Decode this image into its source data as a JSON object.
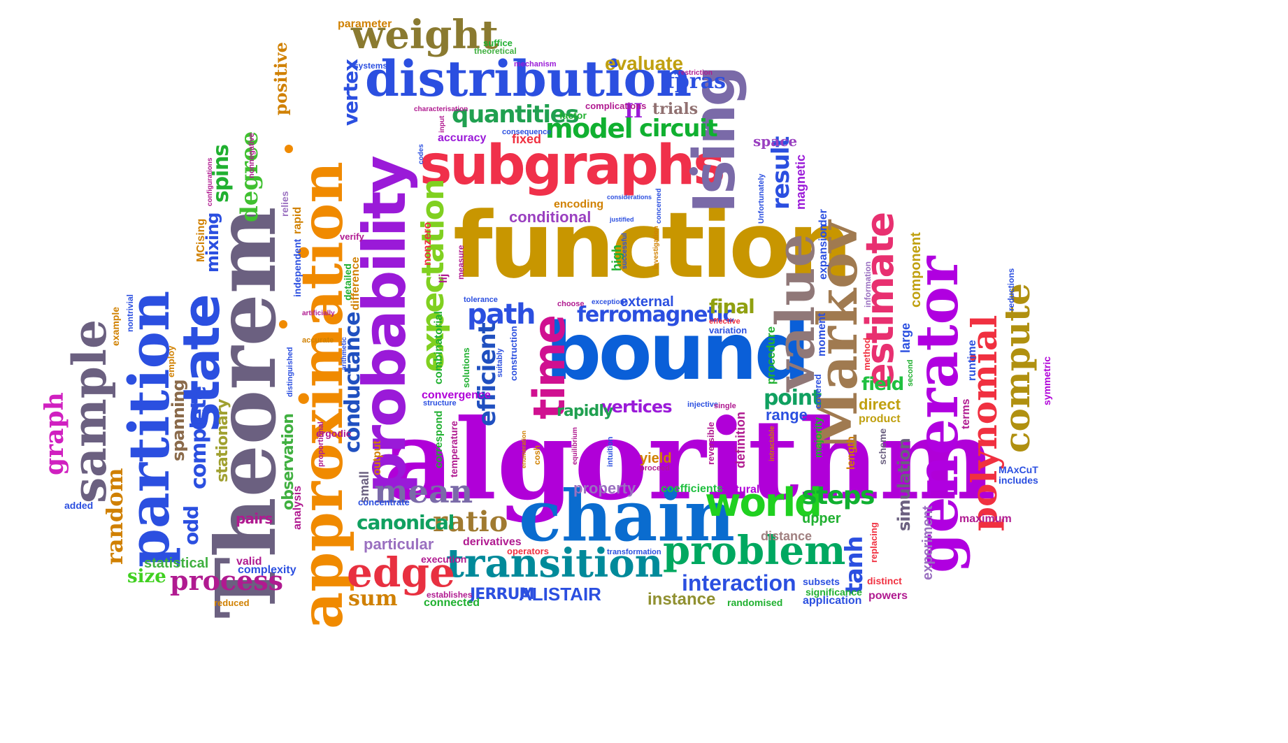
{
  "words": [
    {
      "text": "algorithm",
      "color": "#b000d8",
      "style": "serif"
    },
    {
      "text": "function",
      "color": "#c89600",
      "style": "cond"
    },
    {
      "text": "bound",
      "color": "#0a5fd8",
      "style": "cond"
    },
    {
      "text": "chain",
      "color": "#0a6ccf",
      "style": "serif"
    },
    {
      "text": "subgraphs",
      "color": "#f0304a",
      "style": "cond"
    },
    {
      "text": "distribution",
      "color": "#2b4fe0",
      "style": "serif"
    },
    {
      "text": "Theorem",
      "color": "#6b6080",
      "style": "serif"
    },
    {
      "text": "approximation",
      "color": "#f08a00",
      "style": "serif"
    },
    {
      "text": "probability",
      "color": "#9a1ad8",
      "style": "cond"
    },
    {
      "text": "Ising",
      "color": "#7a6aa8",
      "style": "cond"
    },
    {
      "text": "Markov",
      "color": "#a07a50",
      "style": "serif"
    },
    {
      "text": "value",
      "color": "#907878",
      "style": "serif"
    },
    {
      "text": "generator",
      "color": "#b000e0",
      "style": "serif"
    },
    {
      "text": "polynomial",
      "color": "#f03040",
      "style": "serif"
    },
    {
      "text": "estimate",
      "color": "#e83070",
      "style": "cond"
    },
    {
      "text": "compute",
      "color": "#b09010",
      "style": "serif"
    },
    {
      "text": "weight",
      "color": "#8a7a30",
      "style": "serif"
    },
    {
      "text": "time",
      "color": "#d01090",
      "style": "cond"
    },
    {
      "text": "transition",
      "color": "#008a9a",
      "style": "serif"
    },
    {
      "text": "problem",
      "color": "#00a860",
      "style": "serif"
    },
    {
      "text": "edge",
      "color": "#e83040",
      "style": "serif"
    },
    {
      "text": "mean",
      "color": "#7a6aa8",
      "style": "serif"
    },
    {
      "text": "world",
      "color": "#20d020",
      "style": "cond"
    },
    {
      "text": "partition",
      "color": "#2b4fe0",
      "style": "serif"
    },
    {
      "text": "state",
      "color": "#2b4fe0",
      "style": "cond"
    },
    {
      "text": "sample",
      "color": "#6b6080",
      "style": "serif"
    },
    {
      "text": "process",
      "color": "#b01a90",
      "style": "serif"
    },
    {
      "text": "degree",
      "color": "#40c030",
      "style": "serif"
    },
    {
      "text": "expectation",
      "color": "#80d020",
      "style": "cond"
    },
    {
      "text": "conductance",
      "color": "#2050c0",
      "style": "cond"
    },
    {
      "text": "model",
      "color": "#10b030",
      "style": "cond"
    },
    {
      "text": "quantities",
      "color": "#20a050",
      "style": "cond"
    },
    {
      "text": "circuit",
      "color": "#10b030",
      "style": "cond"
    },
    {
      "text": "ratio",
      "color": "#a07a30",
      "style": "serif"
    },
    {
      "text": "steps",
      "color": "#10b030",
      "style": "cond"
    },
    {
      "text": "interaction",
      "color": "#2b4fe0",
      "style": "sans"
    },
    {
      "text": "canonical",
      "color": "#10a060",
      "style": "cond"
    },
    {
      "text": "ferromagnetic",
      "color": "#2b4fe0",
      "style": "cond"
    },
    {
      "text": "path",
      "color": "#2b4fe0",
      "style": "cond"
    },
    {
      "text": "efficient",
      "color": "#2050c0",
      "style": "cond"
    },
    {
      "text": "random",
      "color": "#d08000",
      "style": "serif"
    },
    {
      "text": "graph",
      "color": "#d020c0",
      "style": "serif"
    },
    {
      "text": "result",
      "color": "#2b4fe0",
      "style": "cond"
    },
    {
      "text": "evaluate",
      "color": "#c0a010",
      "style": "sans"
    },
    {
      "text": "fpras",
      "color": "#2b4fe0",
      "style": "serif"
    },
    {
      "text": "conditional",
      "color": "#9a40c0",
      "style": "sans"
    },
    {
      "text": "tanh",
      "color": "#2b4fe0",
      "style": "cond"
    },
    {
      "text": "sum",
      "color": "#d08000",
      "style": "serif"
    },
    {
      "text": "positive",
      "color": "#d08000",
      "style": "serif"
    },
    {
      "text": "mixing",
      "color": "#2b4fe0",
      "style": "cond"
    },
    {
      "text": "spins",
      "color": "#20b030",
      "style": "cond"
    },
    {
      "text": "point",
      "color": "#10a060",
      "style": "cond"
    },
    {
      "text": "field",
      "color": "#20c040",
      "style": "cond"
    },
    {
      "text": "final",
      "color": "#90a010",
      "style": "cond"
    },
    {
      "text": "vertices",
      "color": "#9a1ad8",
      "style": "cond"
    },
    {
      "text": "vertex",
      "color": "#2b4fe0",
      "style": "cond"
    },
    {
      "text": "direct",
      "color": "#c0a010",
      "style": "sans"
    },
    {
      "text": "particular",
      "color": "#9a70c0",
      "style": "sans"
    },
    {
      "text": "ALISTAIR",
      "color": "#2b4fe0",
      "style": "sans"
    },
    {
      "text": "JERRUM",
      "color": "#2b4fe0",
      "style": "cond"
    },
    {
      "text": "instance",
      "color": "#909030",
      "style": "sans"
    },
    {
      "text": "complete",
      "color": "#2b4fe0",
      "style": "cond"
    },
    {
      "text": "spanning",
      "color": "#8a6a4a",
      "style": "cond"
    },
    {
      "text": "odd",
      "color": "#2b4fe0",
      "style": "cond"
    },
    {
      "text": "stationary",
      "color": "#a0a030",
      "style": "cond"
    },
    {
      "text": "observation",
      "color": "#40b040",
      "style": "cond"
    },
    {
      "text": "statistical",
      "color": "#40b040",
      "style": "sans"
    },
    {
      "text": "size",
      "color": "#40d020",
      "style": "serif"
    },
    {
      "text": "pairs",
      "color": "#b01a90",
      "style": "cond"
    },
    {
      "text": "rapidly",
      "color": "#20a050",
      "style": "cond"
    },
    {
      "text": "external",
      "color": "#2b4fe0",
      "style": "sans"
    },
    {
      "text": "space",
      "color": "#9a40c0",
      "style": "serif"
    },
    {
      "text": "trials",
      "color": "#907070",
      "style": "serif"
    },
    {
      "text": "II",
      "color": "#9a1ad8",
      "style": "serif"
    },
    {
      "text": "fixed",
      "color": "#f03040",
      "style": "sans"
    },
    {
      "text": "accuracy",
      "color": "#9a1ad8",
      "style": "sans"
    },
    {
      "text": "upper",
      "color": "#20b030",
      "style": "sans"
    },
    {
      "text": "distance",
      "color": "#a08080",
      "style": "sans"
    },
    {
      "text": "range",
      "color": "#2b4fe0",
      "style": "sans"
    },
    {
      "text": "property",
      "color": "#9a70c0",
      "style": "sans"
    },
    {
      "text": "coefficients",
      "color": "#20c040",
      "style": "sans"
    },
    {
      "text": "natural",
      "color": "#b000d8",
      "style": "sans"
    },
    {
      "text": "simulation",
      "color": "#6b6080",
      "style": "cond"
    },
    {
      "text": "experiment",
      "color": "#9a70c0",
      "style": "sans"
    },
    {
      "text": "component",
      "color": "#c0a010",
      "style": "sans"
    },
    {
      "text": "maximum",
      "color": "#b01a90",
      "style": "sans"
    },
    {
      "text": "MAxCuT",
      "color": "#2b4fe0",
      "style": "sans"
    },
    {
      "text": "includes",
      "color": "#2b4fe0",
      "style": "sans"
    },
    {
      "text": "terms",
      "color": "#b01a90",
      "style": "sans"
    },
    {
      "text": "runtime",
      "color": "#2b4fe0",
      "style": "sans"
    },
    {
      "text": "symmetric",
      "color": "#b000d8",
      "style": "sans"
    },
    {
      "text": "reductions",
      "color": "#2b4fe0",
      "style": "sans"
    },
    {
      "text": "encoding",
      "color": "#d08000",
      "style": "sans"
    },
    {
      "text": "factor",
      "color": "#20b030",
      "style": "sans"
    },
    {
      "text": "parameter",
      "color": "#d08000",
      "style": "sans"
    },
    {
      "text": "suffice",
      "color": "#20b030",
      "style": "sans"
    },
    {
      "text": "theoretical",
      "color": "#40b040",
      "style": "sans"
    },
    {
      "text": "systems",
      "color": "#2b4fe0",
      "style": "sans"
    },
    {
      "text": "mechanism",
      "color": "#9a1ad8",
      "style": "sans"
    },
    {
      "text": "complications",
      "color": "#b01a90",
      "style": "sans"
    },
    {
      "text": "consequence",
      "color": "#2b4fe0",
      "style": "sans"
    },
    {
      "text": "restriction",
      "color": "#b01a90",
      "style": "sans"
    },
    {
      "text": "characterisation",
      "color": "#b01a90",
      "style": "sans"
    },
    {
      "text": "input",
      "color": "#b01a90",
      "style": "sans"
    },
    {
      "text": "codes",
      "color": "#2b4fe0",
      "style": "sans"
    },
    {
      "text": "considerations",
      "color": "#2b4fe0",
      "style": "sans"
    },
    {
      "text": "justified",
      "color": "#2b4fe0",
      "style": "sans"
    },
    {
      "text": "concerned",
      "color": "#2b4fe0",
      "style": "sans"
    },
    {
      "text": "Unfortunately",
      "color": "#2b4fe0",
      "style": "sans"
    },
    {
      "text": "magnetic",
      "color": "#9a1ad8",
      "style": "sans"
    },
    {
      "text": "order",
      "color": "#2b4fe0",
      "style": "sans"
    },
    {
      "text": "expansion",
      "color": "#2b4fe0",
      "style": "sans"
    },
    {
      "text": "moment",
      "color": "#2b4fe0",
      "style": "sans"
    },
    {
      "text": "information",
      "color": "#9a70c0",
      "style": "sans"
    },
    {
      "text": "large",
      "color": "#2b4fe0",
      "style": "sans"
    },
    {
      "text": "method",
      "color": "#f03040",
      "style": "sans"
    },
    {
      "text": "second",
      "color": "#20b030",
      "style": "sans"
    },
    {
      "text": "covered",
      "color": "#2b4fe0",
      "style": "sans"
    },
    {
      "text": "procedure",
      "color": "#20b030",
      "style": "sans"
    },
    {
      "text": "product",
      "color": "#c0a010",
      "style": "sans"
    },
    {
      "text": "length",
      "color": "#d08000",
      "style": "sans"
    },
    {
      "text": "scheme",
      "color": "#6b6080",
      "style": "sans"
    },
    {
      "text": "majority",
      "color": "#20b030",
      "style": "sans"
    },
    {
      "text": "intractable",
      "color": "#d08000",
      "style": "sans"
    },
    {
      "text": "definition",
      "color": "#b01a90",
      "style": "sans"
    },
    {
      "text": "reversible",
      "color": "#b01a90",
      "style": "sans"
    },
    {
      "text": "injective",
      "color": "#2b4fe0",
      "style": "sans"
    },
    {
      "text": "single",
      "color": "#b01a90",
      "style": "sans"
    },
    {
      "text": "yield",
      "color": "#d08000",
      "style": "sans"
    },
    {
      "text": "proceed",
      "color": "#b01a90",
      "style": "sans"
    },
    {
      "text": "intuition",
      "color": "#2b4fe0",
      "style": "sans"
    },
    {
      "text": "equilibrium",
      "color": "#b01a90",
      "style": "sans"
    },
    {
      "text": "enumeration",
      "color": "#d08000",
      "style": "sans"
    },
    {
      "text": "cosh",
      "color": "#d08000",
      "style": "sans"
    },
    {
      "text": "suitably",
      "color": "#2b4fe0",
      "style": "sans"
    },
    {
      "text": "construction",
      "color": "#2b4fe0",
      "style": "sans"
    },
    {
      "text": "choose",
      "color": "#b01a90",
      "style": "sans"
    },
    {
      "text": "tolerance",
      "color": "#2b4fe0",
      "style": "sans"
    },
    {
      "text": "exceptions",
      "color": "#2b4fe0",
      "style": "sans"
    },
    {
      "text": "effective",
      "color": "#f03040",
      "style": "sans"
    },
    {
      "text": "variation",
      "color": "#2b4fe0",
      "style": "sans"
    },
    {
      "text": "high",
      "color": "#20b030",
      "style": "sans"
    },
    {
      "text": "successful",
      "color": "#2b4fe0",
      "style": "sans"
    },
    {
      "text": "investigation",
      "color": "#d08000",
      "style": "sans"
    },
    {
      "text": "lij",
      "color": "#b01a90",
      "style": "sans"
    },
    {
      "text": "measure",
      "color": "#b01a90",
      "style": "sans"
    },
    {
      "text": "nonzero",
      "color": "#f03040",
      "style": "sans"
    },
    {
      "text": "verify",
      "color": "#b01a90",
      "style": "sans"
    },
    {
      "text": "detailed",
      "color": "#20b030",
      "style": "sans"
    },
    {
      "text": "difference",
      "color": "#d08000",
      "style": "sans"
    },
    {
      "text": "combinatorial",
      "color": "#20b030",
      "style": "sans"
    },
    {
      "text": "solutions",
      "color": "#20b030",
      "style": "sans"
    },
    {
      "text": "convergence",
      "color": "#b000d8",
      "style": "sans"
    },
    {
      "text": "structure",
      "color": "#2b4fe0",
      "style": "sans"
    },
    {
      "text": "correspond",
      "color": "#20b030",
      "style": "sans"
    },
    {
      "text": "temperature",
      "color": "#b01a90",
      "style": "sans"
    },
    {
      "text": "output",
      "color": "#d08000",
      "style": "sans"
    },
    {
      "text": "small",
      "color": "#6b6080",
      "style": "sans"
    },
    {
      "text": "concentrate",
      "color": "#2b4fe0",
      "style": "sans"
    },
    {
      "text": "derivatives",
      "color": "#b01a90",
      "style": "sans"
    },
    {
      "text": "operators",
      "color": "#f03040",
      "style": "sans"
    },
    {
      "text": "transformation",
      "color": "#2b4fe0",
      "style": "sans"
    },
    {
      "text": "execution",
      "color": "#b01a90",
      "style": "sans"
    },
    {
      "text": "establishes",
      "color": "#b01a90",
      "style": "sans"
    },
    {
      "text": "connected",
      "color": "#20b030",
      "style": "sans"
    },
    {
      "text": "randomised",
      "color": "#20b030",
      "style": "sans"
    },
    {
      "text": "application",
      "color": "#2b4fe0",
      "style": "sans"
    },
    {
      "text": "significance",
      "color": "#20b030",
      "style": "sans"
    },
    {
      "text": "subsets",
      "color": "#2b4fe0",
      "style": "sans"
    },
    {
      "text": "powers",
      "color": "#b01a90",
      "style": "sans"
    },
    {
      "text": "distinct",
      "color": "#f03040",
      "style": "sans"
    },
    {
      "text": "replacing",
      "color": "#f03040",
      "style": "sans"
    },
    {
      "text": "complexity",
      "color": "#2b4fe0",
      "style": "sans"
    },
    {
      "text": "valid",
      "color": "#b01a90",
      "style": "sans"
    },
    {
      "text": "reduced",
      "color": "#d08000",
      "style": "sans"
    },
    {
      "text": "added",
      "color": "#2b4fe0",
      "style": "sans"
    },
    {
      "text": "example",
      "color": "#d08000",
      "style": "sans"
    },
    {
      "text": "nontrivial",
      "color": "#2b4fe0",
      "style": "sans"
    },
    {
      "text": "employ",
      "color": "#d08000",
      "style": "sans"
    },
    {
      "text": "analysis",
      "color": "#b01a90",
      "style": "sans"
    },
    {
      "text": "ergodic",
      "color": "#b01a90",
      "style": "sans"
    },
    {
      "text": "proportional",
      "color": "#b01a90",
      "style": "sans"
    },
    {
      "text": "arithmetic",
      "color": "#2b4fe0",
      "style": "sans"
    },
    {
      "text": "distinguished",
      "color": "#2b4fe0",
      "style": "sans"
    },
    {
      "text": "accurate",
      "color": "#d08000",
      "style": "sans"
    },
    {
      "text": "artificially",
      "color": "#b01a90",
      "style": "sans"
    },
    {
      "text": "independent",
      "color": "#2b4fe0",
      "style": "sans"
    },
    {
      "text": "rapid",
      "color": "#d08000",
      "style": "sans"
    },
    {
      "text": "relies",
      "color": "#9a70c0",
      "style": "sans"
    },
    {
      "text": "MCising",
      "color": "#d08000",
      "style": "sans"
    },
    {
      "text": "configurations",
      "color": "#b01a90",
      "style": "sans"
    },
    {
      "text": "nonnegative",
      "color": "#b01a90",
      "style": "sans"
    }
  ]
}
